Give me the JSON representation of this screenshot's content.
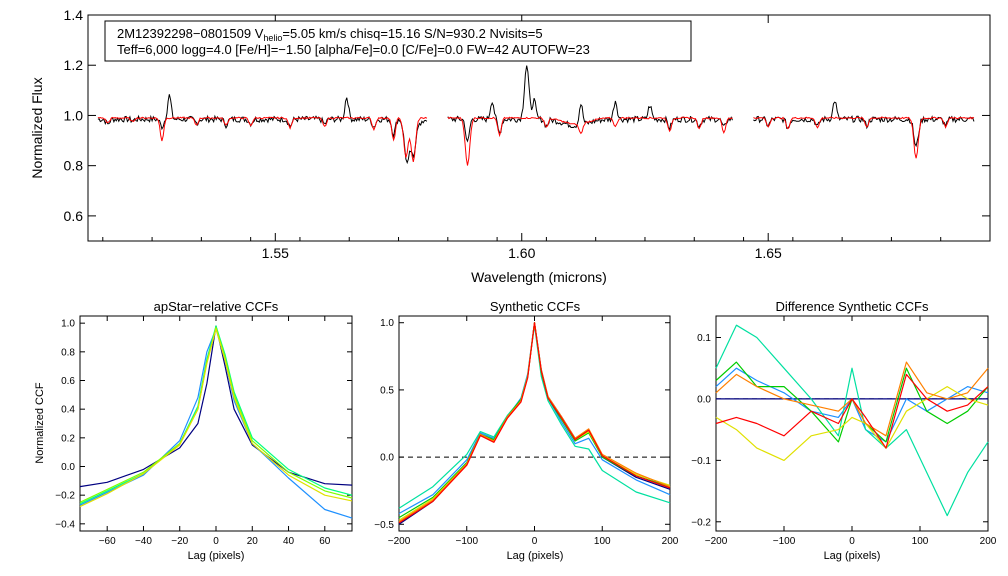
{
  "chart_data": [
    {
      "type": "line",
      "id": "spectrum",
      "title": "",
      "xlabel": "Wavelength (microns)",
      "ylabel": "Normalized Flux",
      "xlim": [
        1.512,
        1.695
      ],
      "ylim": [
        0.5,
        1.4
      ],
      "xticks": [
        1.55,
        1.6,
        1.65
      ],
      "xtick_labels": [
        "1.55",
        "1.60",
        "1.65"
      ],
      "yticks": [
        0.6,
        0.8,
        1.0,
        1.2,
        1.4
      ],
      "ytick_labels": [
        "0.6",
        "0.8",
        "1.0",
        "1.2",
        "1.4"
      ],
      "info_box": {
        "line1_pre": "2M12392298−0801509  V",
        "line1_sub": "helio",
        "line1_post": "=5.05 km/s  chisq=15.16  S/N=930.2  Nvisits=5",
        "line2": "Teff=6,000 logg=4.0 [Fe/H]=−1.50 [alpha/Fe]=0.0 [C/Fe]=0.0 FW=42 AUTOFW=23"
      },
      "chips": [
        [
          1.514,
          1.581
        ],
        [
          1.585,
          1.643
        ],
        [
          1.647,
          1.692
        ]
      ],
      "series": [
        {
          "name": "observed",
          "color": "#000000",
          "continuum": 0.985,
          "lines": [
            [
              1.516,
              0.965
            ],
            [
              1.521,
              0.98
            ],
            [
              1.527,
              0.955
            ],
            [
              1.5285,
              1.08
            ],
            [
              1.534,
              0.97
            ],
            [
              1.54,
              0.962
            ],
            [
              1.545,
              0.968
            ],
            [
              1.553,
              0.958
            ],
            [
              1.56,
              0.965
            ],
            [
              1.5645,
              1.075
            ],
            [
              1.57,
              0.955
            ],
            [
              1.574,
              0.925
            ],
            [
              1.5765,
              0.865
            ],
            [
              1.577,
              0.895
            ],
            [
              1.578,
              0.83
            ],
            [
              1.5795,
              0.96
            ],
            [
              1.589,
              0.89
            ],
            [
              1.594,
              1.06
            ],
            [
              1.5955,
              0.93
            ],
            [
              1.601,
              1.2
            ],
            [
              1.6025,
              1.06
            ],
            [
              1.605,
              0.96
            ],
            [
              1.612,
              1.07
            ],
            [
              1.619,
              1.06
            ],
            [
              1.626,
              1.04
            ],
            [
              1.63,
              0.95
            ],
            [
              1.636,
              0.96
            ],
            [
              1.641,
              0.95
            ],
            [
              1.65,
              0.96
            ],
            [
              1.654,
              0.95
            ],
            [
              1.66,
              0.955
            ],
            [
              1.6635,
              1.06
            ],
            [
              1.67,
              0.96
            ],
            [
              1.68,
              0.875
            ],
            [
              1.686,
              0.96
            ]
          ]
        },
        {
          "name": "synthetic",
          "color": "#ff0000",
          "continuum": 0.99,
          "lines": [
            [
              1.516,
              0.97
            ],
            [
              1.521,
              0.975
            ],
            [
              1.527,
              0.9
            ],
            [
              1.534,
              0.962
            ],
            [
              1.54,
              0.96
            ],
            [
              1.545,
              0.96
            ],
            [
              1.553,
              0.95
            ],
            [
              1.56,
              0.955
            ],
            [
              1.57,
              0.945
            ],
            [
              1.574,
              0.9
            ],
            [
              1.5765,
              0.835
            ],
            [
              1.578,
              0.815
            ],
            [
              1.589,
              0.8
            ],
            [
              1.5955,
              0.92
            ],
            [
              1.605,
              0.955
            ],
            [
              1.612,
              0.95
            ],
            [
              1.619,
              0.955
            ],
            [
              1.63,
              0.935
            ],
            [
              1.636,
              0.945
            ],
            [
              1.641,
              0.93
            ],
            [
              1.65,
              0.955
            ],
            [
              1.654,
              0.945
            ],
            [
              1.66,
              0.95
            ],
            [
              1.67,
              0.955
            ],
            [
              1.68,
              0.83
            ],
            [
              1.686,
              0.955
            ]
          ]
        }
      ]
    },
    {
      "type": "line",
      "id": "apstar_ccf",
      "title": "apStar−relative CCFs",
      "xlabel": "Lag (pixels)",
      "ylabel": "Normalized CCF",
      "xlim": [
        -75,
        75
      ],
      "ylim": [
        -0.45,
        1.05
      ],
      "xticks": [
        -60,
        -40,
        -20,
        0,
        20,
        40,
        60
      ],
      "xtick_labels": [
        "−60",
        "−40",
        "−20",
        "0",
        "20",
        "40",
        "60"
      ],
      "yticks": [
        -0.4,
        -0.2,
        0.0,
        0.2,
        0.4,
        0.6,
        0.8,
        1.0
      ],
      "ytick_labels": [
        "−0.4",
        "−0.2",
        "0.0",
        "0.2",
        "0.4",
        "0.6",
        "0.8",
        "1.0"
      ],
      "series": [
        {
          "name": "visit1",
          "color": "#000080",
          "x": [
            -75,
            -60,
            -40,
            -20,
            -10,
            -5,
            0,
            5,
            10,
            20,
            40,
            60,
            75
          ],
          "y": [
            -0.14,
            -0.11,
            -0.02,
            0.13,
            0.3,
            0.58,
            0.98,
            0.7,
            0.4,
            0.15,
            -0.04,
            -0.12,
            -0.13
          ]
        },
        {
          "name": "visit2",
          "color": "#1e90ff",
          "x": [
            -75,
            -60,
            -40,
            -20,
            -10,
            -5,
            0,
            5,
            10,
            20,
            40,
            60,
            75
          ],
          "y": [
            -0.27,
            -0.18,
            -0.06,
            0.18,
            0.48,
            0.8,
            0.96,
            0.74,
            0.46,
            0.16,
            -0.08,
            -0.3,
            -0.36
          ]
        },
        {
          "name": "visit3",
          "color": "#00ff80",
          "x": [
            -75,
            -60,
            -40,
            -20,
            -10,
            -5,
            0,
            5,
            10,
            20,
            40,
            60,
            75
          ],
          "y": [
            -0.26,
            -0.17,
            -0.05,
            0.16,
            0.42,
            0.75,
            0.98,
            0.78,
            0.52,
            0.2,
            -0.02,
            -0.15,
            -0.2
          ]
        },
        {
          "name": "visit4",
          "color": "#80ff00",
          "x": [
            -75,
            -60,
            -40,
            -20,
            -10,
            -5,
            0,
            5,
            10,
            20,
            40,
            60,
            75
          ],
          "y": [
            -0.25,
            -0.16,
            -0.04,
            0.16,
            0.4,
            0.73,
            0.97,
            0.76,
            0.5,
            0.18,
            -0.04,
            -0.17,
            -0.22
          ]
        },
        {
          "name": "visit5",
          "color": "#e0e000",
          "x": [
            -75,
            -60,
            -40,
            -20,
            -10,
            -5,
            0,
            5,
            10,
            20,
            40,
            60,
            75
          ],
          "y": [
            -0.28,
            -0.19,
            -0.05,
            0.15,
            0.4,
            0.72,
            0.96,
            0.74,
            0.48,
            0.16,
            -0.06,
            -0.2,
            -0.24
          ]
        }
      ]
    },
    {
      "type": "line",
      "id": "synthetic_ccf",
      "title": "Synthetic CCFs",
      "xlabel": "Lag (pixels)",
      "ylabel": "",
      "xlim": [
        -200,
        200
      ],
      "ylim": [
        -0.55,
        1.05
      ],
      "xticks": [
        -200,
        -100,
        0,
        100,
        200
      ],
      "xtick_labels": [
        "−200",
        "−100",
        "0",
        "100",
        "200"
      ],
      "yticks": [
        -0.5,
        0.0,
        0.5,
        1.0
      ],
      "ytick_labels": [
        "−0.5",
        "0.0",
        "0.5",
        "1.0"
      ],
      "zero_line": 0.0,
      "series": [
        {
          "name": "c1",
          "color": "#000080",
          "x": [
            -200,
            -150,
            -100,
            -80,
            -60,
            -40,
            -20,
            -10,
            0,
            10,
            20,
            40,
            60,
            80,
            100,
            150,
            200
          ],
          "y": [
            -0.5,
            -0.33,
            -0.05,
            0.17,
            0.12,
            0.3,
            0.42,
            0.6,
            1.0,
            0.65,
            0.45,
            0.3,
            0.14,
            0.2,
            0.0,
            -0.15,
            -0.24
          ]
        },
        {
          "name": "c2",
          "color": "#1e90ff",
          "x": [
            -200,
            -150,
            -100,
            -80,
            -60,
            -40,
            -20,
            -10,
            0,
            10,
            20,
            40,
            60,
            80,
            100,
            150,
            200
          ],
          "y": [
            -0.42,
            -0.28,
            -0.02,
            0.18,
            0.14,
            0.3,
            0.44,
            0.62,
            1.0,
            0.62,
            0.44,
            0.26,
            0.1,
            0.14,
            -0.02,
            -0.17,
            -0.28
          ]
        },
        {
          "name": "c3",
          "color": "#00e0a0",
          "x": [
            -200,
            -150,
            -100,
            -80,
            -60,
            -40,
            -20,
            -10,
            0,
            10,
            20,
            40,
            60,
            80,
            100,
            150,
            200
          ],
          "y": [
            -0.38,
            -0.22,
            0.02,
            0.19,
            0.15,
            0.31,
            0.43,
            0.61,
            0.98,
            0.6,
            0.42,
            0.24,
            0.08,
            0.06,
            -0.1,
            -0.26,
            -0.34
          ]
        },
        {
          "name": "c4",
          "color": "#00cc00",
          "x": [
            -200,
            -150,
            -100,
            -80,
            -60,
            -40,
            -20,
            -10,
            0,
            10,
            20,
            40,
            60,
            80,
            100,
            150,
            200
          ],
          "y": [
            -0.45,
            -0.3,
            -0.04,
            0.17,
            0.13,
            0.3,
            0.43,
            0.6,
            1.0,
            0.63,
            0.44,
            0.28,
            0.12,
            0.18,
            0.0,
            -0.14,
            -0.22
          ]
        },
        {
          "name": "c5",
          "color": "#e0e000",
          "x": [
            -200,
            -150,
            -100,
            -80,
            -60,
            -40,
            -20,
            -10,
            0,
            10,
            20,
            40,
            60,
            80,
            100,
            150,
            200
          ],
          "y": [
            -0.47,
            -0.31,
            -0.05,
            0.16,
            0.12,
            0.29,
            0.42,
            0.6,
            1.0,
            0.64,
            0.45,
            0.29,
            0.13,
            0.19,
            0.01,
            -0.13,
            -0.21
          ]
        },
        {
          "name": "c6",
          "color": "#ff8000",
          "x": [
            -200,
            -150,
            -100,
            -80,
            -60,
            -40,
            -20,
            -10,
            0,
            10,
            20,
            40,
            60,
            80,
            100,
            150,
            200
          ],
          "y": [
            -0.48,
            -0.32,
            -0.05,
            0.17,
            0.12,
            0.3,
            0.42,
            0.6,
            1.0,
            0.65,
            0.45,
            0.3,
            0.14,
            0.21,
            0.02,
            -0.12,
            -0.22
          ]
        },
        {
          "name": "c7",
          "color": "#ff0000",
          "x": [
            -200,
            -150,
            -100,
            -80,
            -60,
            -40,
            -20,
            -10,
            0,
            10,
            20,
            40,
            60,
            80,
            100,
            150,
            200
          ],
          "y": [
            -0.49,
            -0.33,
            -0.06,
            0.16,
            0.11,
            0.29,
            0.41,
            0.59,
            1.0,
            0.64,
            0.44,
            0.29,
            0.13,
            0.2,
            0.01,
            -0.14,
            -0.23
          ]
        }
      ]
    },
    {
      "type": "line",
      "id": "difference_ccf",
      "title": "Difference Synthetic CCFs",
      "xlabel": "Lag (pixels)",
      "ylabel": "",
      "xlim": [
        -200,
        200
      ],
      "ylim": [
        -0.215,
        0.135
      ],
      "xticks": [
        -200,
        -100,
        0,
        100,
        200
      ],
      "xtick_labels": [
        "−200",
        "−100",
        "0",
        "100",
        "200"
      ],
      "yticks": [
        -0.2,
        -0.1,
        0.0,
        0.1
      ],
      "ytick_labels": [
        "−0.2",
        "−0.1",
        "0.0",
        "0.1"
      ],
      "zero_line": 0.0,
      "series": [
        {
          "name": "d_zero",
          "color": "#000080",
          "x": [
            -200,
            200
          ],
          "y": [
            0,
            0
          ]
        },
        {
          "name": "d1",
          "color": "#1e90ff",
          "x": [
            -200,
            -170,
            -140,
            -100,
            -60,
            -20,
            0,
            20,
            50,
            80,
            110,
            140,
            170,
            200
          ],
          "y": [
            0.02,
            0.05,
            0.03,
            0.01,
            -0.02,
            -0.03,
            0.0,
            -0.05,
            -0.07,
            0.0,
            -0.02,
            0.0,
            0.02,
            0.01
          ]
        },
        {
          "name": "d2",
          "color": "#00e0a0",
          "x": [
            -200,
            -170,
            -140,
            -100,
            -60,
            -20,
            0,
            20,
            50,
            80,
            110,
            140,
            170,
            200
          ],
          "y": [
            0.05,
            0.12,
            0.1,
            0.05,
            0.0,
            -0.06,
            0.05,
            -0.05,
            -0.08,
            -0.05,
            -0.12,
            -0.19,
            -0.12,
            -0.07
          ]
        },
        {
          "name": "d3",
          "color": "#00cc00",
          "x": [
            -200,
            -170,
            -140,
            -100,
            -60,
            -20,
            0,
            20,
            50,
            80,
            110,
            140,
            170,
            200
          ],
          "y": [
            0.03,
            0.06,
            0.02,
            0.02,
            -0.02,
            -0.07,
            0.0,
            -0.04,
            -0.07,
            0.05,
            -0.02,
            -0.04,
            -0.02,
            0.02
          ]
        },
        {
          "name": "d4",
          "color": "#e0e000",
          "x": [
            -200,
            -170,
            -140,
            -100,
            -60,
            -20,
            0,
            20,
            50,
            80,
            110,
            140,
            170,
            200
          ],
          "y": [
            -0.03,
            -0.05,
            -0.08,
            -0.1,
            -0.06,
            -0.05,
            -0.03,
            -0.04,
            -0.08,
            -0.02,
            0.0,
            0.02,
            0.0,
            -0.01
          ]
        },
        {
          "name": "d5",
          "color": "#ff8000",
          "x": [
            -200,
            -170,
            -140,
            -100,
            -60,
            -20,
            0,
            20,
            50,
            80,
            110,
            140,
            170,
            200
          ],
          "y": [
            0.01,
            0.04,
            0.02,
            0.0,
            -0.01,
            -0.02,
            0.0,
            -0.04,
            -0.06,
            0.06,
            0.01,
            0.0,
            0.01,
            0.05
          ]
        },
        {
          "name": "d6",
          "color": "#ff0000",
          "x": [
            -200,
            -170,
            -140,
            -100,
            -60,
            -20,
            0,
            20,
            50,
            80,
            110,
            140,
            170,
            200
          ],
          "y": [
            -0.04,
            -0.03,
            -0.04,
            -0.06,
            -0.02,
            -0.04,
            0.0,
            -0.03,
            -0.08,
            0.04,
            0.0,
            -0.02,
            -0.01,
            0.02
          ]
        }
      ]
    }
  ]
}
